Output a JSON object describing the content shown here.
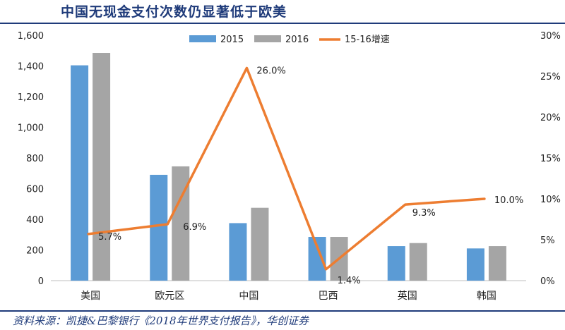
{
  "title": "中国无现金支付次数仍显著低于欧美",
  "source": "资料来源：凯捷&巴黎银行《2018年世界支付报告》，华创证券",
  "colors": {
    "bar2015": "#5b9bd5",
    "bar2016": "#a5a5a5",
    "growth": "#ed7d31",
    "title": "#1f3b7a"
  },
  "chart_data": {
    "type": "bar",
    "categories": [
      "美国",
      "欧元区",
      "中国",
      "巴西",
      "英国",
      "韩国"
    ],
    "series": [
      {
        "name": "2015",
        "type": "bar",
        "axis": "left",
        "values": [
          1404,
          690,
          375,
          285,
          225,
          210
        ]
      },
      {
        "name": "2016",
        "type": "bar",
        "axis": "left",
        "values": [
          1485,
          745,
          475,
          285,
          245,
          225
        ]
      },
      {
        "name": "15-16增速",
        "type": "line",
        "axis": "right",
        "values": [
          0.057,
          0.069,
          0.26,
          0.014,
          0.093,
          0.1
        ]
      }
    ],
    "data_labels": [
      "5.7%",
      "6.9%",
      "26.0%",
      "1.4%",
      "9.3%",
      "10.0%"
    ],
    "left_axis": {
      "min": 0,
      "max": 1600,
      "step": 200,
      "tick_labels": [
        "0",
        "200",
        "400",
        "600",
        "800",
        "1,000",
        "1,200",
        "1,400",
        "1,600"
      ]
    },
    "right_axis": {
      "min": 0,
      "max": 0.3,
      "step": 0.05,
      "tick_labels": [
        "0%",
        "5%",
        "10%",
        "15%",
        "20%",
        "25%",
        "30%"
      ]
    },
    "legend": [
      "2015",
      "2016",
      "15-16增速"
    ],
    "legend_position": "top"
  }
}
